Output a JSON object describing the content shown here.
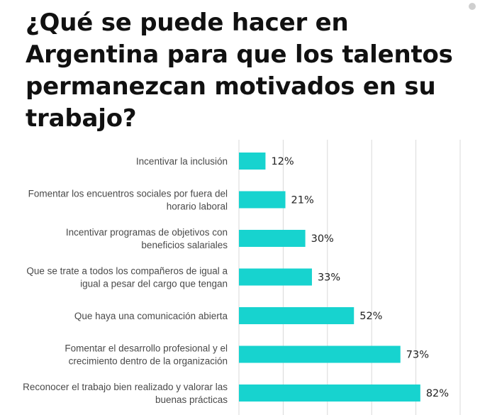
{
  "chart_data": {
    "type": "bar",
    "orientation": "horizontal",
    "title": "¿Qué se puede hacer en Argentina para que los talentos permanezcan motivados en su trabajo?",
    "categories": [
      [
        "Incentivar la inclusión"
      ],
      [
        "Fomentar los encuentros sociales por fuera del",
        "horario laboral"
      ],
      [
        "Incentivar programas de objetivos con",
        "beneficios salariales"
      ],
      [
        "Que se trate a todos los compañeros de igual a",
        "igual a pesar del cargo que tengan"
      ],
      [
        "Que haya una comunicación abierta"
      ],
      [
        "Fomentar el desarrollo profesional y el",
        "crecimiento dentro de la organización"
      ],
      [
        "Reconocer el trabajo bien realizado y valorar las",
        "buenas prácticas"
      ]
    ],
    "values": [
      12,
      21,
      30,
      33,
      52,
      73,
      82
    ],
    "value_labels": [
      "12%",
      "21%",
      "30%",
      "33%",
      "52%",
      "73%",
      "82%"
    ],
    "unit": "%",
    "xlim": [
      0,
      100
    ],
    "grid": "vertical",
    "bar_color": "#17d3cf",
    "grid_color": "#d9d9d9"
  }
}
